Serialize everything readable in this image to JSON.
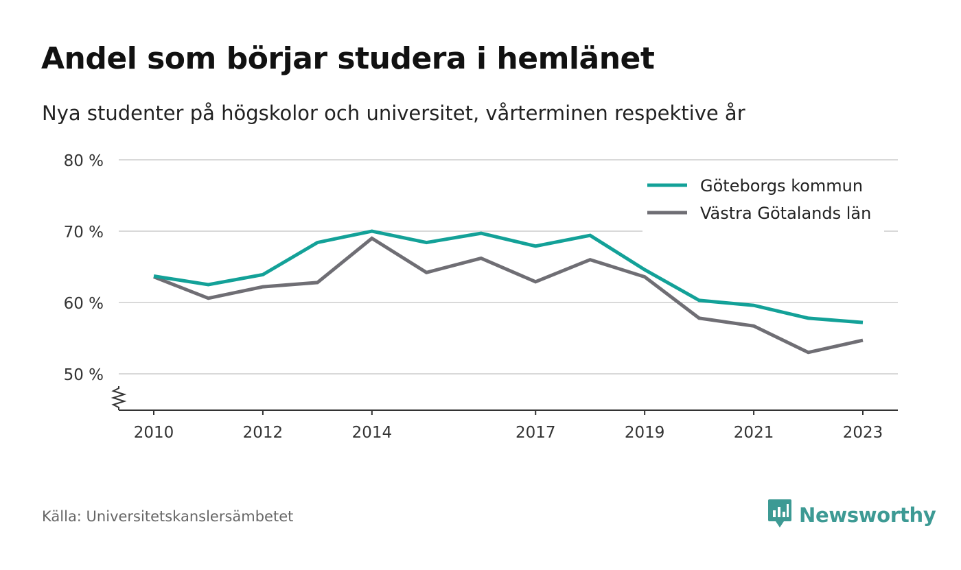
{
  "header": {
    "title": "Andel som börjar studera i hemlänet",
    "subtitle": "Nya studenter på högskolor och universitet, vårterminen respektive år"
  },
  "footer": {
    "source": "Källa: Universitetskanslersämbetet",
    "brand": "Newsworthy",
    "brand_icon": "newsworthy-logo-icon",
    "brand_color": "#3d9a94"
  },
  "chart_data": {
    "type": "line",
    "title": "Andel som börjar studera i hemlänet",
    "subtitle": "Nya studenter på högskolor och universitet, vårterminen respektive år",
    "xlabel": "",
    "ylabel": "",
    "x": [
      2010,
      2011,
      2012,
      2013,
      2014,
      2015,
      2016,
      2017,
      2018,
      2019,
      2020,
      2021,
      2022,
      2023
    ],
    "x_tick_values": [
      2010,
      2012,
      2014,
      2017,
      2019,
      2021,
      2023
    ],
    "x_tick_labels": [
      "2010",
      "2012",
      "2014",
      "2017",
      "2019",
      "2021",
      "2023"
    ],
    "ylim": [
      50,
      80
    ],
    "y_ticks": [
      50,
      60,
      70,
      80
    ],
    "y_tick_labels": [
      "50 %",
      "60 %",
      "70 %",
      "80 %"
    ],
    "y_axis_break": true,
    "grid": true,
    "legend_position": "top-right",
    "series": [
      {
        "name": "Göteborgs kommun",
        "color": "#13a198",
        "values": [
          63.7,
          62.5,
          63.9,
          68.4,
          70.0,
          68.4,
          69.7,
          67.9,
          69.4,
          64.6,
          60.3,
          59.6,
          57.8,
          57.2
        ]
      },
      {
        "name": "Västra Götalands län",
        "color": "#6f6e74",
        "values": [
          63.6,
          60.6,
          62.2,
          62.8,
          69.0,
          64.2,
          66.2,
          62.9,
          66.0,
          63.6,
          57.8,
          56.7,
          53.0,
          54.7
        ]
      }
    ]
  }
}
